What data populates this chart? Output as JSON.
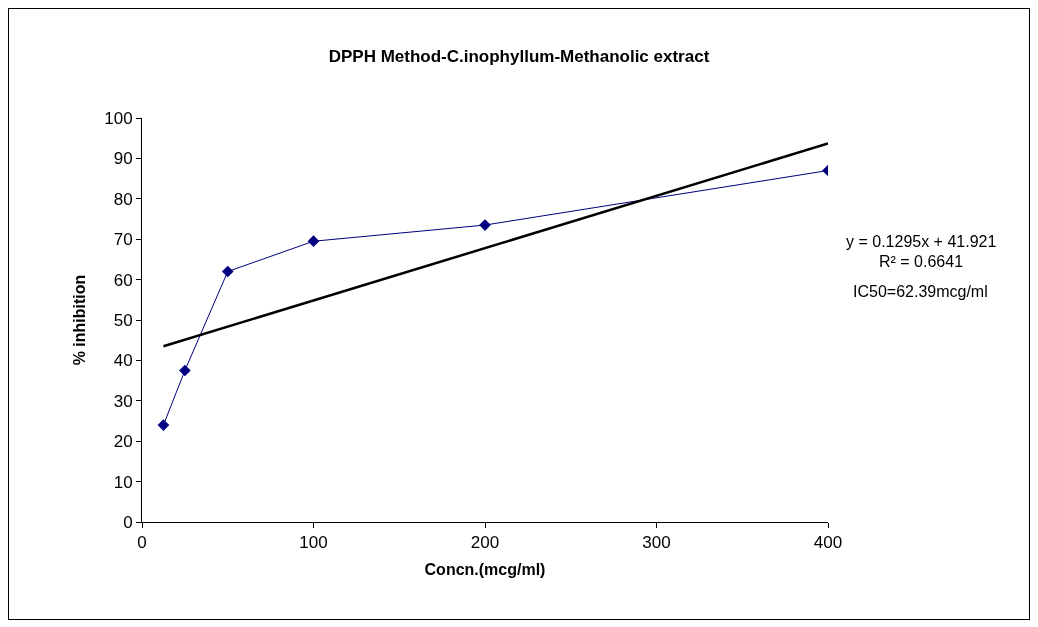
{
  "chart_data": {
    "type": "line",
    "title": "DPPH Method-C.inophyllum-Methanolic extract",
    "xlabel": "Concn.(mcg/ml)",
    "ylabel": "% inhibition",
    "xlim": [
      0,
      400
    ],
    "xticks": [
      0,
      100,
      200,
      300,
      400
    ],
    "ylim": [
      0,
      100
    ],
    "yticks": [
      0,
      10,
      20,
      30,
      40,
      50,
      60,
      70,
      80,
      90,
      100
    ],
    "grid": false,
    "marker": "diamond",
    "line_style": "solid",
    "series": [
      {
        "color": "#000080",
        "x": [
          12.5,
          25,
          50,
          100,
          200,
          400
        ],
        "values": [
          24,
          37.5,
          62,
          69.5,
          73.5,
          87
        ]
      },
      {
        "color": "#000000",
        "marker": "none",
        "x": [
          12.5,
          400
        ],
        "values": [
          43.5,
          93.7
        ]
      }
    ],
    "annotations": [
      "y = 0.1295x + 41.921",
      "R² = 0.6641",
      "IC50=62.39mcg/ml"
    ]
  }
}
